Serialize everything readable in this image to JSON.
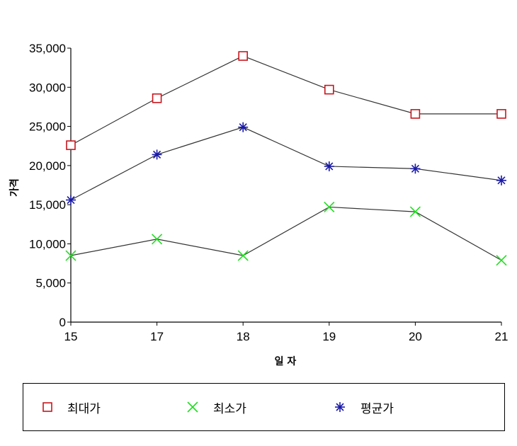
{
  "chart_data": {
    "type": "line",
    "xlabel": "일 자",
    "ylabel": "가격",
    "x": [
      "15",
      "17",
      "18",
      "19",
      "20",
      "21"
    ],
    "ylim": [
      0,
      35000
    ],
    "yticks": [
      0,
      5000,
      10000,
      15000,
      20000,
      25000,
      30000,
      35000
    ],
    "ytick_labels": [
      "0",
      "5,000",
      "10,000",
      "15,000",
      "20,000",
      "25,000",
      "30,000",
      "35,000"
    ],
    "grid": false,
    "legend_position": "bottom",
    "series": [
      {
        "name": "최대가",
        "marker": "square",
        "marker_color": "#c8161d",
        "values": [
          22600,
          28600,
          34000,
          29700,
          26600,
          26600
        ]
      },
      {
        "name": "최소가",
        "marker": "x",
        "marker_color": "#22dd22",
        "values": [
          8500,
          10600,
          8500,
          14700,
          14100,
          7900
        ]
      },
      {
        "name": "평균가",
        "marker": "asterisk",
        "marker_color": "#1a1aa8",
        "values": [
          15600,
          21400,
          24900,
          19900,
          19600,
          18100
        ]
      }
    ]
  }
}
